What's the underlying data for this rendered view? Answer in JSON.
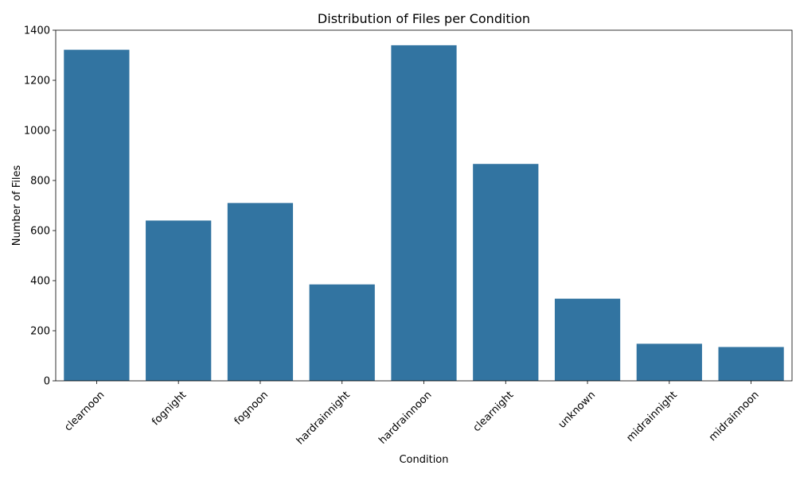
{
  "chart_data": {
    "type": "bar",
    "title": "Distribution of Files per Condition",
    "xlabel": "Condition",
    "ylabel": "Number of Files",
    "categories": [
      "clearnoon",
      "fognight",
      "fognoon",
      "hardrainnight",
      "hardrainnoon",
      "clearnight",
      "unknown",
      "midrainnight",
      "midrainnoon"
    ],
    "values": [
      1322,
      640,
      710,
      385,
      1340,
      866,
      328,
      148,
      135
    ],
    "ylim": [
      0,
      1400
    ],
    "yticks": [
      0,
      200,
      400,
      600,
      800,
      1000,
      1200,
      1400
    ],
    "grid": false,
    "bar_color": "#3274a1"
  }
}
